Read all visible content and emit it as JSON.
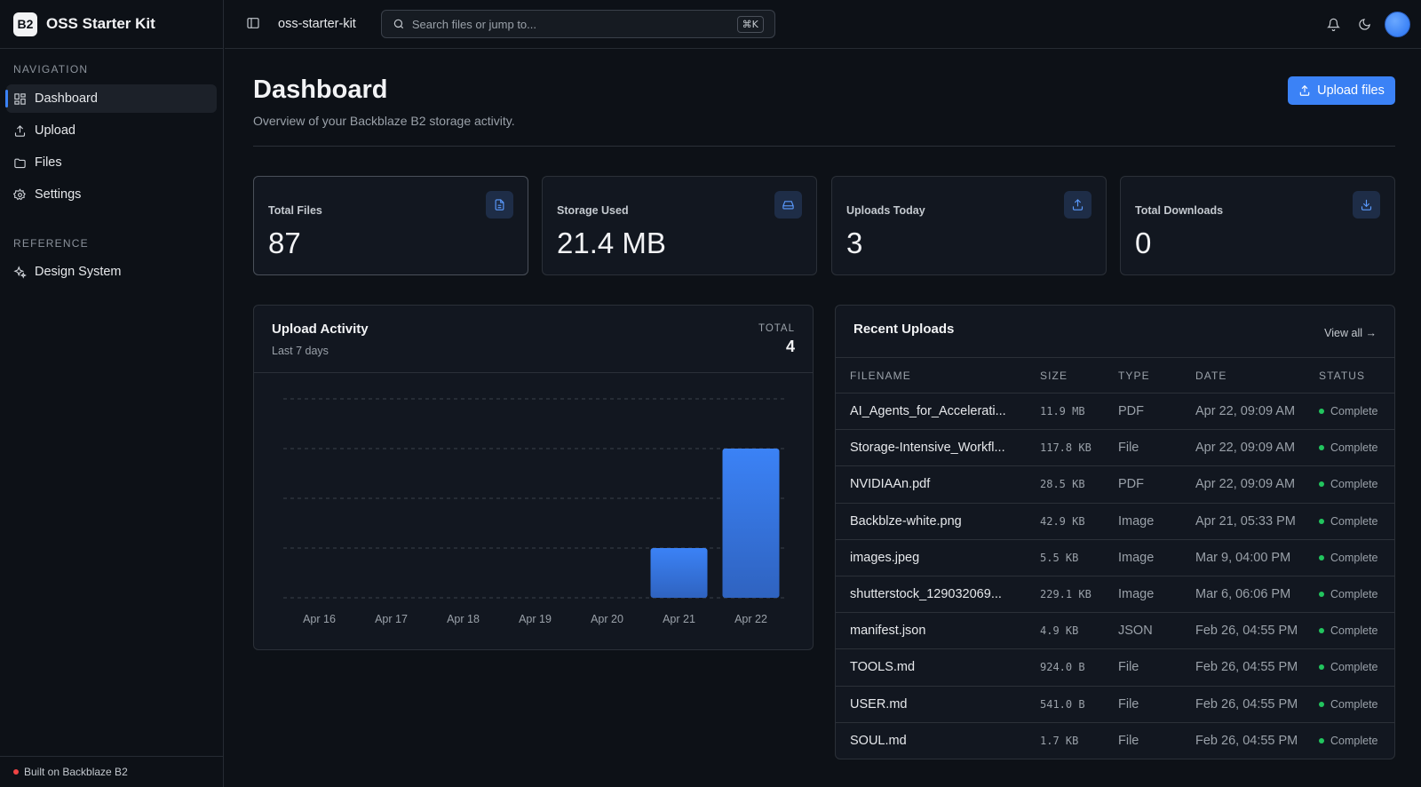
{
  "brand": {
    "logo": "B2",
    "name": "OSS Starter Kit"
  },
  "sidebar": {
    "navigation_label": "NAVIGATION",
    "nav_items": [
      {
        "label": "Dashboard",
        "icon": "dashboard-grid-icon",
        "active": true
      },
      {
        "label": "Upload",
        "icon": "upload-icon"
      },
      {
        "label": "Files",
        "icon": "folder-icon"
      },
      {
        "label": "Settings",
        "icon": "gear-icon"
      }
    ],
    "reference_label": "REFERENCE",
    "reference_items": [
      {
        "label": "Design System",
        "icon": "sparkles-icon"
      }
    ],
    "footer": "Built on Backblaze B2"
  },
  "topbar": {
    "project": "oss-starter-kit",
    "search_placeholder": "Search files or jump to...",
    "shortcut": "⌘K"
  },
  "header": {
    "title": "Dashboard",
    "subtitle": "Overview of your Backblaze B2 storage activity.",
    "upload_button": "Upload files"
  },
  "stats": [
    {
      "label": "Total Files",
      "value": "87",
      "icon": "file-icon"
    },
    {
      "label": "Storage Used",
      "value": "21.4 MB",
      "icon": "hard-drive-icon"
    },
    {
      "label": "Uploads Today",
      "value": "3",
      "icon": "upload-icon"
    },
    {
      "label": "Total Downloads",
      "value": "0",
      "icon": "download-icon"
    }
  ],
  "activity": {
    "title": "Upload Activity",
    "subtitle": "Last 7 days",
    "total_label": "TOTAL",
    "total": "4"
  },
  "chart_data": {
    "type": "bar",
    "categories": [
      "Apr 16",
      "Apr 17",
      "Apr 18",
      "Apr 19",
      "Apr 20",
      "Apr 21",
      "Apr 22"
    ],
    "values": [
      0,
      0,
      0,
      0,
      0,
      1,
      3
    ],
    "ylim": [
      0,
      4
    ],
    "grid": true,
    "bar_color": "#3b82f6"
  },
  "recent": {
    "title": "Recent Uploads",
    "view_all": "View all →",
    "columns": [
      "FILENAME",
      "SIZE",
      "TYPE",
      "DATE",
      "STATUS"
    ],
    "rows": [
      {
        "name": "AI_Agents_for_Accelerati...",
        "size": "11.9 MB",
        "type": "PDF",
        "date": "Apr 22, 09:09 AM",
        "status": "Complete"
      },
      {
        "name": "Storage-Intensive_Workfl...",
        "size": "117.8 KB",
        "type": "File",
        "date": "Apr 22, 09:09 AM",
        "status": "Complete"
      },
      {
        "name": "NVIDIAAn.pdf",
        "size": "28.5 KB",
        "type": "PDF",
        "date": "Apr 22, 09:09 AM",
        "status": "Complete"
      },
      {
        "name": "Backblze-white.png",
        "size": "42.9 KB",
        "type": "Image",
        "date": "Apr 21, 05:33 PM",
        "status": "Complete"
      },
      {
        "name": "images.jpeg",
        "size": "5.5 KB",
        "type": "Image",
        "date": "Mar 9, 04:00 PM",
        "status": "Complete"
      },
      {
        "name": "shutterstock_129032069...",
        "size": "229.1 KB",
        "type": "Image",
        "date": "Mar 6, 06:06 PM",
        "status": "Complete"
      },
      {
        "name": "manifest.json",
        "size": "4.9 KB",
        "type": "JSON",
        "date": "Feb 26, 04:55 PM",
        "status": "Complete"
      },
      {
        "name": "TOOLS.md",
        "size": "924.0 B",
        "type": "File",
        "date": "Feb 26, 04:55 PM",
        "status": "Complete"
      },
      {
        "name": "USER.md",
        "size": "541.0 B",
        "type": "File",
        "date": "Feb 26, 04:55 PM",
        "status": "Complete"
      },
      {
        "name": "SOUL.md",
        "size": "1.7 KB",
        "type": "File",
        "date": "Feb 26, 04:55 PM",
        "status": "Complete"
      }
    ]
  }
}
